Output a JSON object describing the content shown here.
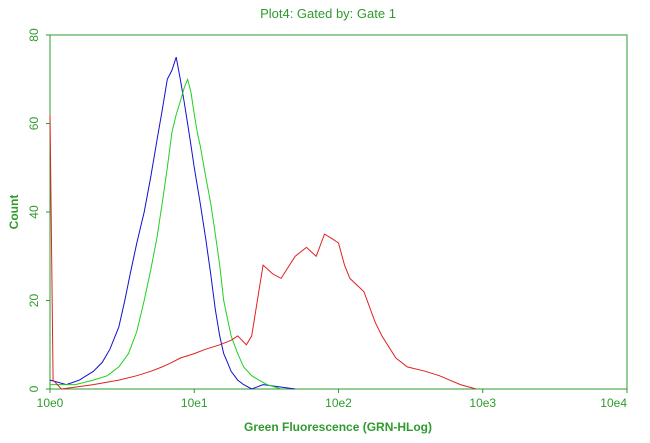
{
  "colors": {
    "axis_text": "#2e9b2e",
    "frame": "#2e9b2e",
    "background": "#ffffff"
  },
  "chart_data": {
    "type": "line",
    "title": "Plot4:  Gated by: Gate 1",
    "xlabel": "Green Fluorescence (GRN-HLog)",
    "ylabel": "Count",
    "xscale": "log",
    "xlim": [
      1,
      10000
    ],
    "ylim": [
      0,
      80
    ],
    "xticks": [
      {
        "value": 1,
        "label": "10e0"
      },
      {
        "value": 10,
        "label": "10e1"
      },
      {
        "value": 100,
        "label": "10e2"
      },
      {
        "value": 1000,
        "label": "10e3"
      },
      {
        "value": 10000,
        "label": "10e4"
      }
    ],
    "yticks": [
      {
        "value": 0,
        "label": "0"
      },
      {
        "value": 20,
        "label": "20"
      },
      {
        "value": 40,
        "label": "40"
      },
      {
        "value": 60,
        "label": "60"
      },
      {
        "value": 80,
        "label": "80"
      }
    ],
    "grid": false,
    "legend": "none",
    "series": [
      {
        "color": "#1010d0",
        "x": [
          1.0,
          1.3,
          1.6,
          2.0,
          2.3,
          2.6,
          3.0,
          3.3,
          3.6,
          4.0,
          4.5,
          5.0,
          5.5,
          6.0,
          6.5,
          7.0,
          7.5,
          8.0,
          8.5,
          9.0,
          9.5,
          10.0,
          11.0,
          12.0,
          13.0,
          14.0,
          15.0,
          16.0,
          17.0,
          18.0,
          20.0,
          22.0,
          25.0,
          30.0,
          50.0
        ],
        "y": [
          2,
          1,
          2,
          4,
          6,
          9,
          14,
          20,
          26,
          33,
          40,
          48,
          56,
          63,
          70,
          72,
          75,
          70,
          65,
          60,
          55,
          50,
          42,
          34,
          26,
          18,
          12,
          8,
          6,
          4,
          2,
          1,
          0,
          1,
          0
        ]
      },
      {
        "color": "#20d020",
        "x": [
          1.0,
          1.5,
          2.0,
          2.5,
          3.0,
          3.5,
          4.0,
          4.5,
          5.0,
          5.5,
          6.0,
          6.5,
          7.0,
          7.5,
          8.0,
          8.5,
          9.0,
          9.5,
          10.0,
          10.5,
          11.0,
          12.0,
          13.0,
          14.0,
          15.0,
          16.0,
          18.0,
          20.0,
          22.0,
          25.0,
          28.0,
          32.0,
          40.0
        ],
        "y": [
          1,
          1,
          2,
          3,
          5,
          8,
          13,
          20,
          27,
          34,
          42,
          50,
          58,
          62,
          65,
          68,
          70,
          67,
          62,
          58,
          55,
          48,
          42,
          35,
          28,
          20,
          12,
          8,
          5,
          3,
          2,
          1,
          0
        ]
      },
      {
        "color": "#e02020",
        "x": [
          1.0,
          1.05,
          1.2,
          2.0,
          3.0,
          4.0,
          5.0,
          6.0,
          7.0,
          8.0,
          10.0,
          12.0,
          15.0,
          18.0,
          20.0,
          23.0,
          25.0,
          28.0,
          30.0,
          35.0,
          40.0,
          50.0,
          60.0,
          70.0,
          80.0,
          90.0,
          100.0,
          110.0,
          120.0,
          150.0,
          180.0,
          200.0,
          250.0,
          300.0,
          400.0,
          500.0,
          700.0,
          900.0
        ],
        "y": [
          62,
          2,
          0,
          1,
          2,
          3,
          4,
          5,
          6,
          7,
          8,
          9,
          10,
          11,
          12,
          10,
          12,
          22,
          28,
          26,
          25,
          30,
          32,
          30,
          35,
          34,
          33,
          28,
          25,
          22,
          15,
          12,
          7,
          5,
          4,
          3,
          1,
          0
        ]
      }
    ]
  }
}
